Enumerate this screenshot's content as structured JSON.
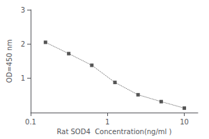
{
  "chart_data": {
    "type": "line",
    "x": [
      0.156,
      0.313,
      0.625,
      1.25,
      2.5,
      5.0,
      10.0
    ],
    "values": [
      2.05,
      1.72,
      1.38,
      0.88,
      0.52,
      0.32,
      0.13
    ],
    "xlabel": "Rat SOD4  Concentration(ng/ml )",
    "ylabel": "OD=450 nm",
    "xlim": [
      0.1,
      15
    ],
    "ylim": [
      0.0,
      3.0
    ],
    "xticks": [
      0.1,
      1,
      10
    ],
    "yticks": [
      1,
      2,
      3
    ],
    "log": "x",
    "grid": false,
    "color": "#555555",
    "marker": "square",
    "line_style": "dotted"
  }
}
